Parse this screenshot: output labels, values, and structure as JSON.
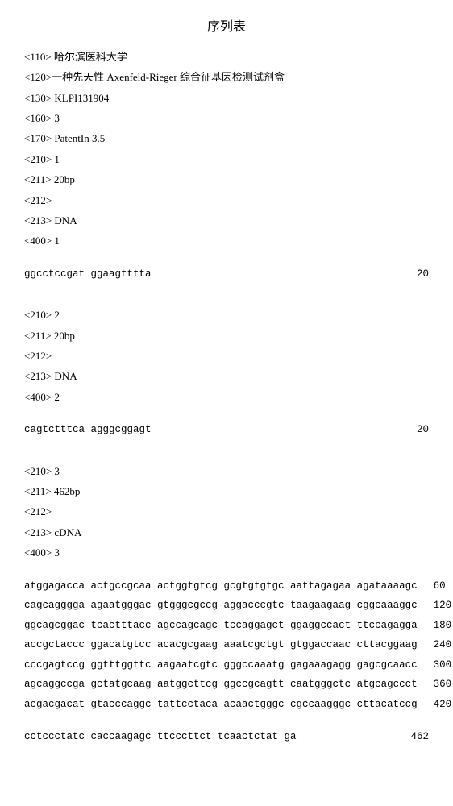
{
  "title": "序列表",
  "header": {
    "h110": "<110> 哈尔滨医科大学",
    "h120": "<120>一种先天性 Axenfeld‑Rieger 综合征基因检测试剂盒",
    "h130": "<130> KLPI131904",
    "h160": "<160> 3",
    "h170": "<170> PatentIn 3.5"
  },
  "seq1": {
    "h210": "<210> 1",
    "h211": "<211> 20bp",
    "h212": "<212>",
    "h213": "<213> DNA",
    "h400": "<400> 1",
    "rows": [
      {
        "text": "ggcctccgat ggaagtttta",
        "num": "20"
      }
    ]
  },
  "seq2": {
    "h210": "<210> 2",
    "h211": "<211> 20bp",
    "h212": "<212>",
    "h213": "<213> DNA",
    "h400": "<400> 2",
    "rows": [
      {
        "text": "cagtctttca agggcggagt",
        "num": "20"
      }
    ]
  },
  "seq3": {
    "h210": "<210> 3",
    "h211": "<211> 462bp",
    "h212": "<212>",
    "h213": "<213> cDNA",
    "h400": "<400> 3",
    "rows": [
      {
        "text": "atggagacca actgccgcaa actggtgtcg gcgtgtgtgc aattagagaa agataaaagc",
        "num": "60"
      },
      {
        "text": "cagcagggga agaatgggac gtgggcgccg aggacccgtc taagaagaag cggcaaaggc",
        "num": "120"
      },
      {
        "text": "ggcagcggac tcactttacc agccagcagc tccaggagct ggaggccact ttccagagga",
        "num": "180"
      },
      {
        "text": "accgctaccc ggacatgtcc acacgcgaag aaatcgctgt gtggaccaac cttacggaag",
        "num": "240"
      },
      {
        "text": "cccgagtccg ggtttggttc aagaatcgtc gggccaaatg gagaaagagg gagcgcaacc",
        "num": "300"
      },
      {
        "text": "agcaggccga gctatgcaag aatggcttcg ggccgcagtt caatgggctc atgcagccct",
        "num": "360"
      },
      {
        "text": "acgacgacat gtacccaggc tattcctaca acaactgggc cgccaagggc cttacatccg",
        "num": "420"
      },
      {
        "text": "cctccctatc caccaagagc ttcccttct tcaactctat ga",
        "num": "462"
      }
    ]
  }
}
